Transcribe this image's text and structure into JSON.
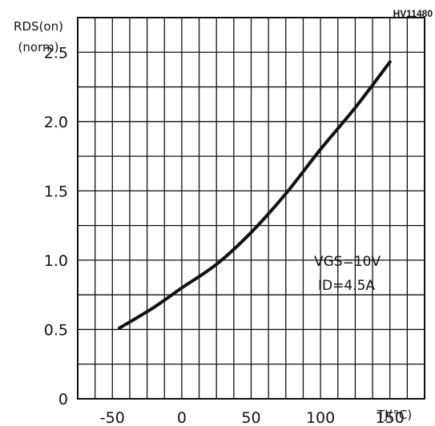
{
  "chart_data": {
    "type": "line",
    "code_label": "HV11480",
    "ylabel_line1": "RDS(on)",
    "ylabel_line2": "(norm)",
    "xlabel": "TJ(°C)",
    "x_ticks": [
      "-50",
      "0",
      "50",
      "100",
      "150"
    ],
    "y_ticks": [
      "0",
      "0.5",
      "1.0",
      "1.5",
      "2.0",
      "2.5"
    ],
    "xlim": [
      -75,
      175
    ],
    "ylim": [
      0,
      2.75
    ],
    "grid": true,
    "annotations": [
      "VGS=10V",
      "ID=4.5A"
    ],
    "series": [
      {
        "x": [
          -45,
          -20,
          0,
          25,
          50,
          75,
          100,
          125,
          150
        ],
        "y": [
          0.51,
          0.66,
          0.8,
          0.97,
          1.2,
          1.48,
          1.8,
          2.1,
          2.43
        ]
      }
    ]
  }
}
